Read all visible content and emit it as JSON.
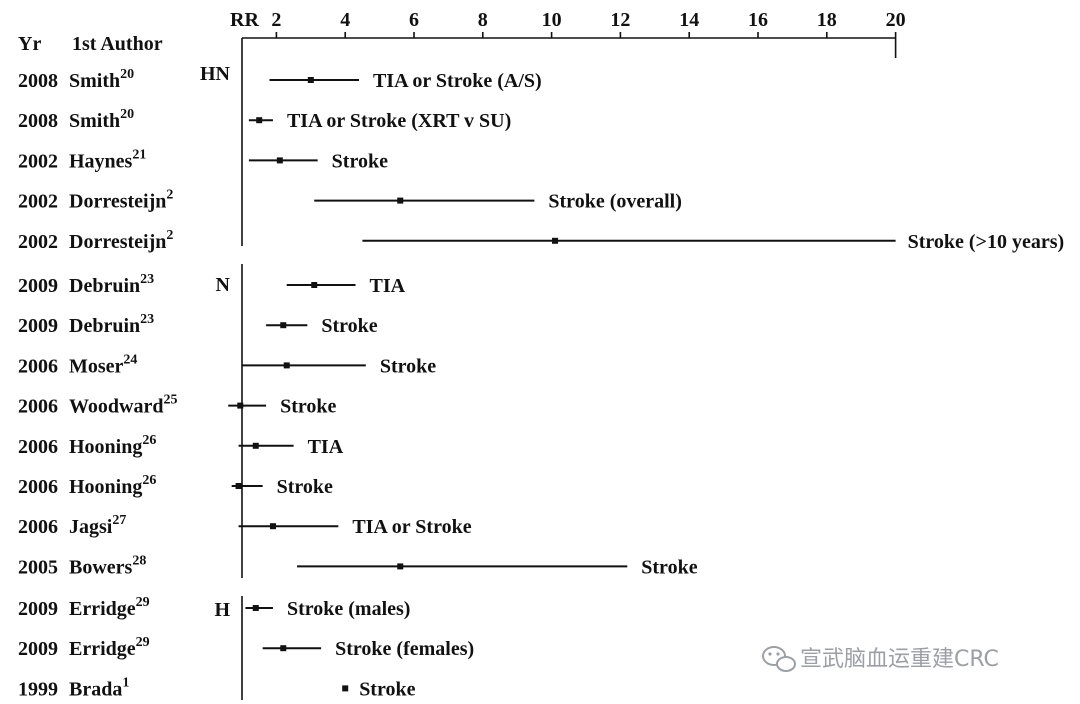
{
  "chart_data": {
    "type": "forest",
    "header": {
      "yr": "Yr",
      "author": "1st Author",
      "rr": "RR"
    },
    "xlim": [
      1,
      20
    ],
    "xticks": [
      2,
      4,
      6,
      8,
      10,
      12,
      14,
      16,
      18,
      20
    ],
    "groups": [
      {
        "label": "HN",
        "rows": [
          {
            "yr": "2008",
            "author": "Smith",
            "ref": "20",
            "est": 3.0,
            "lo": 1.8,
            "hi": 4.4,
            "label": "TIA or Stroke  (A/S)"
          },
          {
            "yr": "2008",
            "author": "Smith",
            "ref": "20",
            "est": 1.5,
            "lo": 1.2,
            "hi": 1.9,
            "label": "TIA or Stroke  (XRT v SU)"
          },
          {
            "yr": "2002",
            "author": "Haynes",
            "ref": "21",
            "est": 2.1,
            "lo": 1.2,
            "hi": 3.2,
            "label": "Stroke"
          },
          {
            "yr": "2002",
            "author": "Dorresteijn",
            "ref": "2",
            "est": 5.6,
            "lo": 3.1,
            "hi": 9.5,
            "label": "Stroke  (overall)"
          },
          {
            "yr": "2002",
            "author": "Dorresteijn",
            "ref": "2",
            "est": 10.1,
            "lo": 4.5,
            "hi": 20.0,
            "label": "Stroke (>10 years)"
          }
        ]
      },
      {
        "label": "N",
        "rows": [
          {
            "yr": "2009",
            "author": "Debruin",
            "ref": "23",
            "est": 3.1,
            "lo": 2.3,
            "hi": 4.3,
            "label": "TIA"
          },
          {
            "yr": "2009",
            "author": "Debruin",
            "ref": "23",
            "est": 2.2,
            "lo": 1.7,
            "hi": 2.9,
            "label": "Stroke"
          },
          {
            "yr": "2006",
            "author": "Moser",
            "ref": "24",
            "est": 2.3,
            "lo": 1.0,
            "hi": 4.6,
            "label": "Stroke"
          },
          {
            "yr": "2006",
            "author": "Woodward",
            "ref": "25",
            "est": 0.95,
            "lo": 0.6,
            "hi": 1.7,
            "label": "Stroke"
          },
          {
            "yr": "2006",
            "author": "Hooning",
            "ref": "26",
            "est": 1.4,
            "lo": 0.9,
            "hi": 2.5,
            "label": "TIA"
          },
          {
            "yr": "2006",
            "author": "Hooning",
            "ref": "26",
            "est": 0.9,
            "lo": 0.7,
            "hi": 1.6,
            "label": "Stroke"
          },
          {
            "yr": "2006",
            "author": "Jagsi",
            "ref": "27",
            "est": 1.9,
            "lo": 0.9,
            "hi": 3.8,
            "label": "TIA or Stroke"
          },
          {
            "yr": "2005",
            "author": "Bowers",
            "ref": "28",
            "est": 5.6,
            "lo": 2.6,
            "hi": 12.2,
            "label": "Stroke"
          }
        ]
      },
      {
        "label": "H",
        "rows": [
          {
            "yr": "2009",
            "author": "Erridge",
            "ref": "29",
            "est": 1.4,
            "lo": 1.1,
            "hi": 1.9,
            "label": "Stroke (males)"
          },
          {
            "yr": "2009",
            "author": "Erridge",
            "ref": "29",
            "est": 2.2,
            "lo": 1.6,
            "hi": 3.3,
            "label": "Stroke (females)"
          },
          {
            "yr": "1999",
            "author": "Brada",
            "ref": "1",
            "est": 4.0,
            "lo": null,
            "hi": null,
            "label": "Stroke"
          }
        ]
      }
    ]
  },
  "watermark": {
    "text": "宣武脑血运重建CRC",
    "icon": "wechat-icon"
  }
}
